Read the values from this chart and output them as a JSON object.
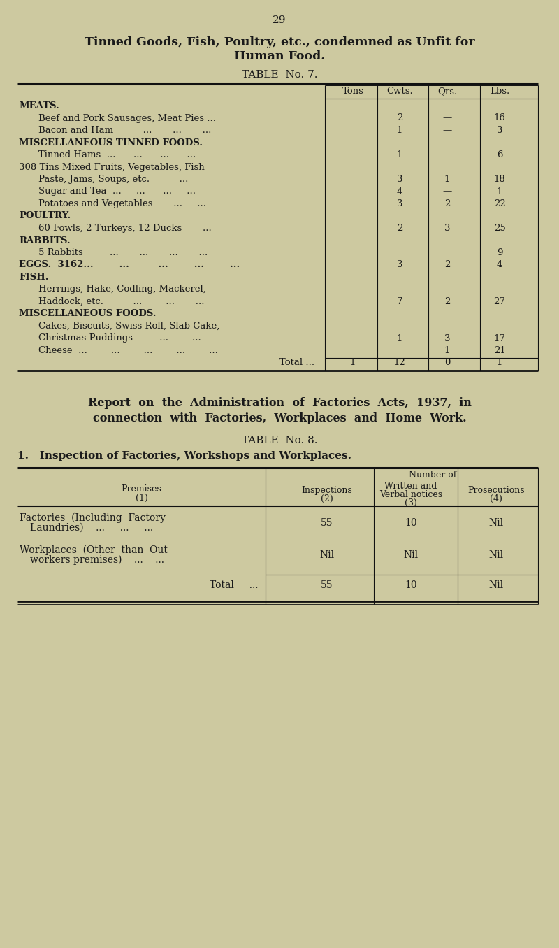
{
  "bg_color": "#cdc9a0",
  "page_number": "29",
  "title1": "Tinned Goods, Fish, Poultry, etc., condemned as Unfit for",
  "title2": "Human Food.",
  "table7_title": "TABLE  No. 7.",
  "table7_headers": [
    "Tons",
    "Cwts.",
    "Qrs.",
    "Lbs."
  ],
  "table7_rows": [
    {
      "label": "MEATS.",
      "indent": false,
      "bold": true,
      "tons": "",
      "cwts": "",
      "qrs": "",
      "lbs": ""
    },
    {
      "label": "Beef and Pork Sausages, Meat Pies ...",
      "indent": true,
      "bold": false,
      "tons": "",
      "cwts": "2",
      "qrs": "—",
      "lbs": "16"
    },
    {
      "label": "Bacon and Ham          ...       ...       ...",
      "indent": true,
      "bold": false,
      "tons": "",
      "cwts": "1",
      "qrs": "—",
      "lbs": "3"
    },
    {
      "label": "MISCELLANEOUS TINNED FOODS.",
      "indent": false,
      "bold": true,
      "tons": "",
      "cwts": "",
      "qrs": "",
      "lbs": ""
    },
    {
      "label": "Tinned Hams  ...      ...      ...      ...",
      "indent": true,
      "bold": false,
      "tons": "",
      "cwts": "1",
      "qrs": "—",
      "lbs": "6"
    },
    {
      "label": "308 Tins Mixed Fruits, Vegetables, Fish",
      "indent": false,
      "bold": false,
      "tons": "",
      "cwts": "",
      "qrs": "",
      "lbs": ""
    },
    {
      "label": "Paste, Jams, Soups, etc.          ...",
      "indent": true,
      "bold": false,
      "tons": "",
      "cwts": "3",
      "qrs": "1",
      "lbs": "18"
    },
    {
      "label": "Sugar and Tea  ...     ...      ...     ...",
      "indent": true,
      "bold": false,
      "tons": "",
      "cwts": "4",
      "qrs": "—",
      "lbs": "1"
    },
    {
      "label": "Potatoes and Vegetables       ...     ...",
      "indent": true,
      "bold": false,
      "tons": "",
      "cwts": "3",
      "qrs": "2",
      "lbs": "22"
    },
    {
      "label": "POULTRY.",
      "indent": false,
      "bold": true,
      "tons": "",
      "cwts": "",
      "qrs": "",
      "lbs": ""
    },
    {
      "label": "60 Fowls, 2 Turkeys, 12 Ducks       ...",
      "indent": true,
      "bold": false,
      "tons": "",
      "cwts": "2",
      "qrs": "3",
      "lbs": "25"
    },
    {
      "label": "RABBITS.",
      "indent": false,
      "bold": true,
      "tons": "",
      "cwts": "",
      "qrs": "",
      "lbs": ""
    },
    {
      "label": "5 Rabbits         ...       ...       ...       ...",
      "indent": true,
      "bold": false,
      "tons": "",
      "cwts": "",
      "qrs": "",
      "lbs": "9"
    },
    {
      "label": "EGGS.  3162...        ...         ...        ...        ...",
      "indent": false,
      "bold": true,
      "tons": "",
      "cwts": "3",
      "qrs": "2",
      "lbs": "4"
    },
    {
      "label": "FISH.",
      "indent": false,
      "bold": true,
      "tons": "",
      "cwts": "",
      "qrs": "",
      "lbs": ""
    },
    {
      "label": "Herrings, Hake, Codling, Mackerel,",
      "indent": true,
      "bold": false,
      "tons": "",
      "cwts": "",
      "qrs": "",
      "lbs": ""
    },
    {
      "label": "Haddock, etc.          ...        ...       ...",
      "indent": true,
      "bold": false,
      "tons": "",
      "cwts": "7",
      "qrs": "2",
      "lbs": "27"
    },
    {
      "label": "MISCELLANEOUS FOODS.",
      "indent": false,
      "bold": true,
      "tons": "",
      "cwts": "",
      "qrs": "",
      "lbs": ""
    },
    {
      "label": "Cakes, Biscuits, Swiss Roll, Slab Cake,",
      "indent": true,
      "bold": false,
      "tons": "",
      "cwts": "",
      "qrs": "",
      "lbs": ""
    },
    {
      "label": "Christmas Puddings         ...        ...",
      "indent": true,
      "bold": false,
      "tons": "",
      "cwts": "1",
      "qrs": "3",
      "lbs": "17"
    },
    {
      "label": "Cheese  ...        ...        ...        ...        ...",
      "indent": true,
      "bold": false,
      "tons": "",
      "cwts": "",
      "qrs": "1",
      "lbs": "21"
    },
    {
      "label": "Total ...",
      "indent": "total",
      "bold": false,
      "tons": "1",
      "cwts": "12",
      "qrs": "0",
      "lbs": "1"
    }
  ],
  "section2_title1": "Report  on  the  Administration  of  Factories  Acts,  1937,  in",
  "section2_title2": "connection  with  Factories,  Workplaces  and  Home  Work.",
  "table8_title": "TABLE  No. 8.",
  "table8_section": "1.   Inspection of Factories, Workshops and Workplaces.",
  "table8_number_of": "Number of",
  "table8_rows": [
    {
      "label1": "Factories  (Including  Factory",
      "label2": "Laundries)    ...     ...     ...",
      "col2": "55",
      "col3": "10",
      "col4": "Nil"
    },
    {
      "label1": "Workplaces  (Other  than  Out-",
      "label2": "workers premises)    ...    ...",
      "col2": "Nil",
      "col3": "Nil",
      "col4": "Nil"
    },
    {
      "label1": "Total     ...",
      "label2": "",
      "col2": "55",
      "col3": "10",
      "col4": "Nil"
    }
  ]
}
